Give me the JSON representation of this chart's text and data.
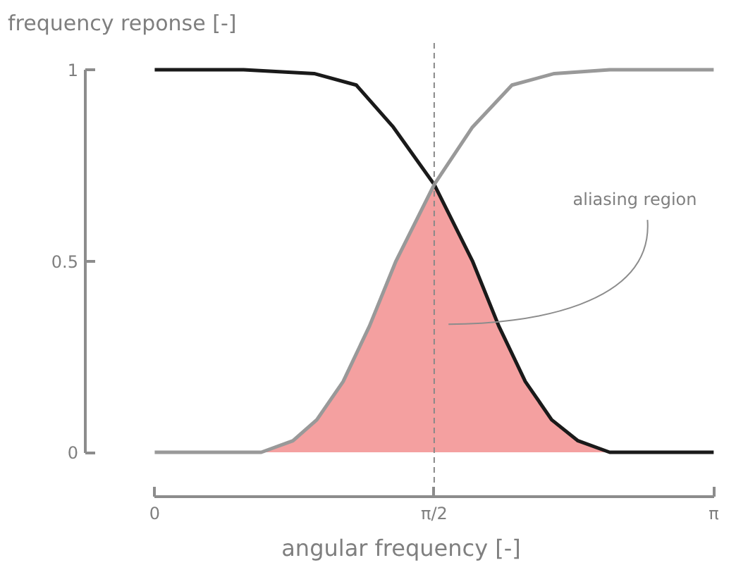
{
  "chart_data": {
    "type": "line",
    "xlabel": "angular frequency [-]",
    "ylabel": "frequency reponse [-]",
    "xlim": [
      -0.39,
      3.16
    ],
    "ylim": [
      -0.116,
      1.07
    ],
    "xticks": [
      {
        "value": 0,
        "label": "0"
      },
      {
        "value": 1.5708,
        "label": "π/2"
      },
      {
        "value": 3.1416,
        "label": "π"
      }
    ],
    "yticks": [
      0,
      0.5,
      1
    ],
    "series": [
      {
        "type": "area",
        "color": "#f4a0a0",
        "x": [
          0.599,
          0.777,
          0.911,
          1.059,
          1.207,
          1.356,
          1.571,
          1.786,
          1.934,
          2.083,
          2.231,
          2.379,
          2.557
        ],
        "values": [
          0,
          0.03,
          0.085,
          0.185,
          0.33,
          0.5,
          0.7,
          0.5,
          0.33,
          0.185,
          0.085,
          0.03,
          0
        ]
      },
      {
        "color": "#1a1a1a",
        "x": [
          0,
          0.5,
          0.896,
          1.133,
          1.341,
          1.571,
          1.786,
          1.934,
          2.083,
          2.231,
          2.379,
          2.557,
          3.1416
        ],
        "values": [
          1,
          1,
          0.99,
          0.96,
          0.85,
          0.7,
          0.5,
          0.33,
          0.185,
          0.085,
          0.03,
          0,
          0
        ]
      },
      {
        "color": "#999999",
        "x": [
          0,
          0.599,
          0.777,
          0.911,
          1.059,
          1.207,
          1.356,
          1.571,
          1.786,
          2.008,
          2.246,
          2.557,
          3.1416
        ],
        "values": [
          0,
          0,
          0.03,
          0.085,
          0.185,
          0.33,
          0.5,
          0.7,
          0.85,
          0.96,
          0.99,
          1,
          1
        ]
      }
    ],
    "ref_lines": [
      {
        "axis": "x",
        "value": 1.5708,
        "color": "#888888",
        "line_style": "dashed"
      }
    ],
    "annotations": [
      "aliasing region"
    ]
  }
}
